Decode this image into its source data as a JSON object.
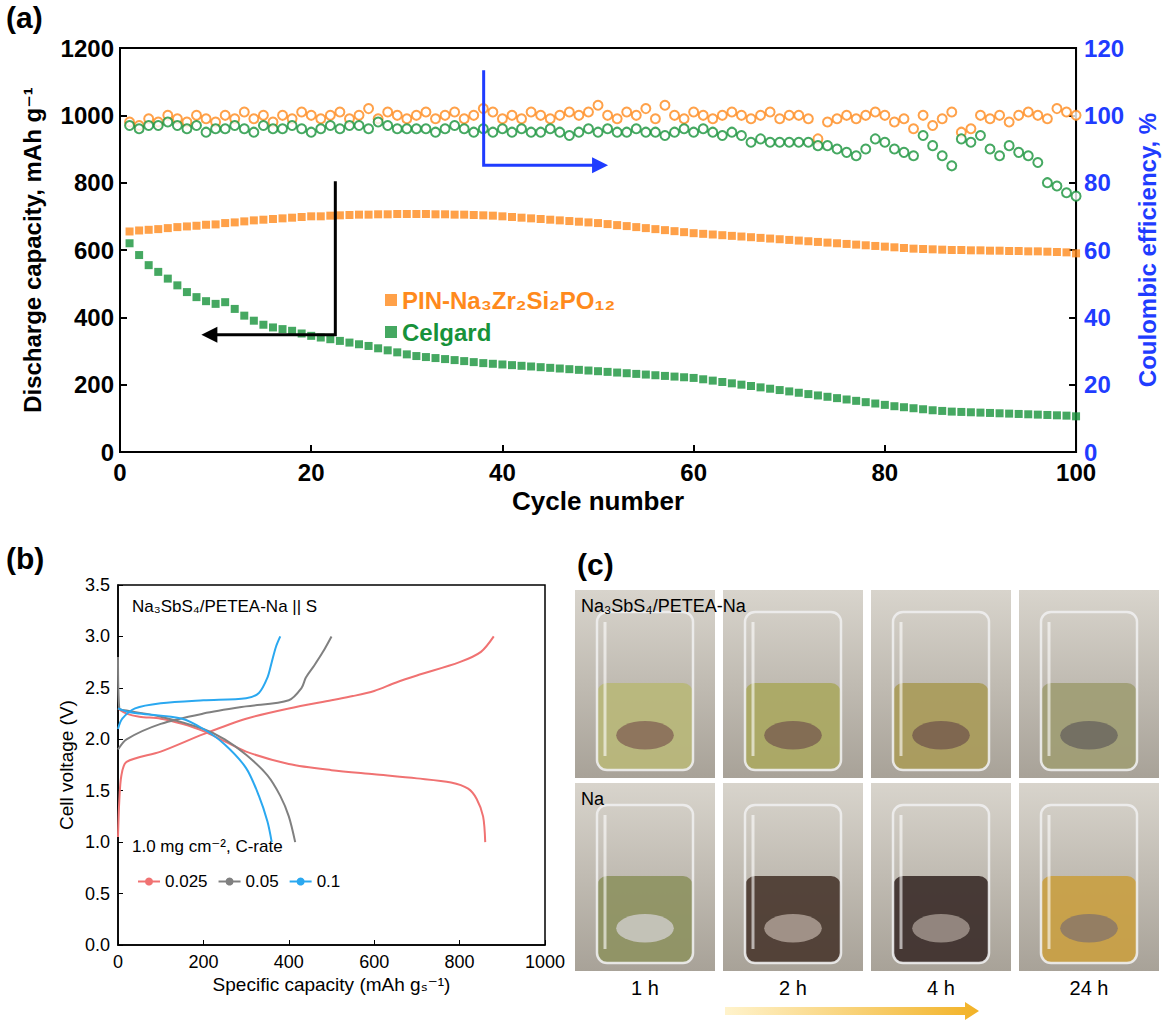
{
  "chart_data": [
    {
      "type": "scatter",
      "label": "(a)",
      "xlabel": "Cycle number",
      "ylabel": "Discharge capacity, mAh g⁻¹",
      "y2label": "Coulombic efficiency, %",
      "xlim": [
        0,
        100
      ],
      "xticks": [
        0,
        20,
        40,
        60,
        80,
        100
      ],
      "ylim": [
        0,
        1200
      ],
      "yticks": [
        0,
        200,
        400,
        600,
        800,
        1000,
        1200
      ],
      "y2lim": [
        0,
        120
      ],
      "y2ticks": [
        0,
        20,
        40,
        60,
        80,
        100,
        120
      ],
      "legend": "center",
      "x": [
        1,
        2,
        3,
        4,
        5,
        6,
        7,
        8,
        9,
        10,
        11,
        12,
        13,
        14,
        15,
        16,
        17,
        18,
        19,
        20,
        21,
        22,
        23,
        24,
        25,
        26,
        27,
        28,
        29,
        30,
        31,
        32,
        33,
        34,
        35,
        36,
        37,
        38,
        39,
        40,
        41,
        42,
        43,
        44,
        45,
        46,
        47,
        48,
        49,
        50,
        51,
        52,
        53,
        54,
        55,
        56,
        57,
        58,
        59,
        60,
        61,
        62,
        63,
        64,
        65,
        66,
        67,
        68,
        69,
        70,
        71,
        72,
        73,
        74,
        75,
        76,
        77,
        78,
        79,
        80,
        81,
        82,
        83,
        84,
        85,
        86,
        87,
        88,
        89,
        90,
        91,
        92,
        93,
        94,
        95,
        96,
        97,
        98,
        99,
        100
      ],
      "series": [
        {
          "name": "PIN-Na₃Zr₂Si₂PO₁₂",
          "color": "#ff8a1c",
          "marker": "square",
          "values": [
            655,
            658,
            660,
            662,
            665,
            668,
            670,
            672,
            675,
            676,
            680,
            682,
            685,
            688,
            690,
            692,
            694,
            696,
            698,
            700,
            700,
            702,
            703,
            704,
            705,
            705,
            706,
            706,
            707,
            707,
            707,
            707,
            706,
            706,
            705,
            705,
            704,
            703,
            702,
            700,
            698,
            696,
            694,
            692,
            690,
            688,
            686,
            684,
            682,
            680,
            677,
            674,
            671,
            668,
            665,
            662,
            659,
            656,
            653,
            650,
            648,
            646,
            644,
            642,
            640,
            638,
            636,
            634,
            632,
            630,
            628,
            626,
            624,
            622,
            620,
            618,
            616,
            614,
            612,
            610,
            608,
            606,
            604,
            603,
            602,
            601,
            600,
            600,
            599,
            599,
            598,
            598,
            597,
            597,
            596,
            596,
            595,
            594,
            593,
            590
          ]
        },
        {
          "name": "Celgard",
          "color": "#17923a",
          "marker": "square",
          "values": [
            620,
            585,
            555,
            535,
            515,
            495,
            475,
            460,
            448,
            440,
            445,
            425,
            405,
            390,
            378,
            370,
            365,
            360,
            352,
            345,
            340,
            335,
            330,
            325,
            320,
            315,
            308,
            302,
            296,
            290,
            285,
            282,
            279,
            276,
            273,
            270,
            267,
            264,
            262,
            260,
            258,
            256,
            254,
            252,
            250,
            248,
            246,
            244,
            242,
            240,
            238,
            236,
            234,
            232,
            230,
            228,
            226,
            224,
            222,
            220,
            216,
            212,
            208,
            204,
            200,
            196,
            192,
            188,
            184,
            180,
            176,
            172,
            168,
            164,
            160,
            156,
            152,
            148,
            144,
            140,
            136,
            133,
            130,
            127,
            124,
            122,
            120,
            119,
            118,
            117,
            116,
            115,
            114,
            113,
            112,
            111,
            110,
            109,
            108,
            106
          ]
        },
        {
          "name": "PIN-Na₃Zr₂Si₂PO₁₂",
          "color": "#ff8a1c",
          "marker": "open_circle",
          "axis": "y2",
          "values": [
            98,
            97,
            99,
            98,
            100,
            99,
            98,
            100,
            99,
            98,
            100,
            99,
            101,
            99,
            100,
            98,
            100,
            99,
            101,
            100,
            99,
            100,
            101,
            99,
            100,
            102,
            99,
            101,
            100,
            99,
            100,
            101,
            99,
            100,
            101,
            99,
            100,
            102,
            101,
            99,
            100,
            99,
            101,
            100,
            99,
            100,
            101,
            100,
            101,
            103,
            100,
            99,
            101,
            100,
            102,
            99,
            103,
            100,
            99,
            101,
            100,
            99,
            100,
            101,
            100,
            99,
            100,
            101,
            99,
            100,
            100,
            99,
            93,
            98,
            99,
            100,
            99,
            100,
            101,
            100,
            98,
            99,
            96,
            100,
            97,
            99,
            101,
            95,
            96,
            100,
            99,
            100,
            98,
            100,
            101,
            100,
            99,
            102,
            101,
            100
          ]
        },
        {
          "name": "Celgard",
          "color": "#17923a",
          "marker": "open_circle",
          "axis": "y2",
          "values": [
            97,
            96,
            97,
            97,
            98,
            97,
            96,
            97,
            95,
            96,
            96,
            97,
            96,
            95,
            97,
            96,
            96,
            97,
            96,
            95,
            96,
            97,
            96,
            97,
            97,
            96,
            98,
            97,
            96,
            96,
            96,
            96,
            95,
            96,
            97,
            96,
            95,
            96,
            95,
            96,
            95,
            96,
            95,
            95,
            96,
            95,
            94,
            95,
            96,
            95,
            96,
            95,
            95,
            96,
            95,
            95,
            94,
            95,
            96,
            95,
            96,
            95,
            94,
            95,
            94,
            92,
            93,
            92,
            92,
            92,
            92,
            92,
            91,
            91,
            90,
            89,
            88,
            90,
            93,
            92,
            90,
            89,
            88,
            94,
            91,
            88,
            85,
            93,
            92,
            94,
            90,
            88,
            91,
            89,
            88,
            86,
            80,
            79,
            77,
            76
          ]
        }
      ]
    },
    {
      "type": "line",
      "label": "(b)",
      "xlabel": "Specific capacity (mAh gₛ⁻¹)",
      "ylabel": "Cell voltage (V)",
      "xlim": [
        0,
        1000
      ],
      "xticks": [
        0,
        200,
        400,
        600,
        800,
        1000
      ],
      "ylim": [
        0,
        3.5
      ],
      "yticks": [
        {
          "value": 0,
          "label": "0.0"
        },
        0.5,
        {
          "value": 1,
          "label": "1.0"
        },
        1.5,
        {
          "value": 2,
          "label": "2.0"
        },
        2.5,
        {
          "value": 3,
          "label": "3.0"
        },
        3.5
      ],
      "annotations": [
        "Na₃SbS₄/PETEA-Na || S",
        "1.0 mg cm⁻², C-rate"
      ],
      "legend": "lower left",
      "series": [
        {
          "name": "0.025",
          "color": "#f07272",
          "x": [
            0,
            20,
            50,
            100,
            150,
            200,
            250,
            300,
            400,
            500,
            600,
            700,
            780,
            820,
            840,
            855,
            860,
            null,
            0,
            3,
            8,
            20,
            100,
            200,
            300,
            400,
            500,
            550,
            600,
            650,
            700,
            800,
            850,
            880
          ],
          "values": [
            2.3,
            2.25,
            2.22,
            2.2,
            2.15,
            2.08,
            1.98,
            1.88,
            1.76,
            1.7,
            1.66,
            1.62,
            1.58,
            1.52,
            1.42,
            1.25,
            1.0,
            null,
            1.05,
            1.4,
            1.65,
            1.78,
            1.88,
            2.05,
            2.2,
            2.3,
            2.38,
            2.42,
            2.47,
            2.55,
            2.62,
            2.75,
            2.85,
            3.0
          ]
        },
        {
          "name": "0.05",
          "color": "#808080",
          "x": [
            0,
            3,
            20,
            100,
            200,
            250,
            300,
            350,
            380,
            400,
            415,
            null,
            0,
            20,
            100,
            200,
            300,
            400,
            430,
            440,
            460,
            480,
            500
          ],
          "values": [
            2.8,
            2.3,
            2.28,
            2.22,
            2.1,
            2.0,
            1.85,
            1.65,
            1.45,
            1.25,
            1.0,
            null,
            1.9,
            2.0,
            2.15,
            2.25,
            2.32,
            2.38,
            2.5,
            2.6,
            2.72,
            2.85,
            3.0
          ]
        },
        {
          "name": "0.1",
          "color": "#2aa8f0",
          "x": [
            0,
            20,
            50,
            150,
            200,
            250,
            300,
            330,
            350,
            360,
            null,
            0,
            10,
            40,
            100,
            200,
            300,
            330,
            350,
            360,
            370,
            380
          ],
          "values": [
            2.3,
            2.27,
            2.25,
            2.2,
            2.1,
            1.95,
            1.72,
            1.45,
            1.2,
            1.0,
            null,
            2.1,
            2.2,
            2.3,
            2.35,
            2.38,
            2.4,
            2.45,
            2.6,
            2.75,
            2.9,
            3.0
          ]
        }
      ]
    }
  ],
  "photo_panel": {
    "label": "(c)",
    "rows": [
      {
        "label": "Na₃SbS₄/PETEA-Na"
      },
      {
        "label": "Na"
      }
    ],
    "times": [
      "1 h",
      "2 h",
      "4 h",
      "24 h"
    ]
  }
}
